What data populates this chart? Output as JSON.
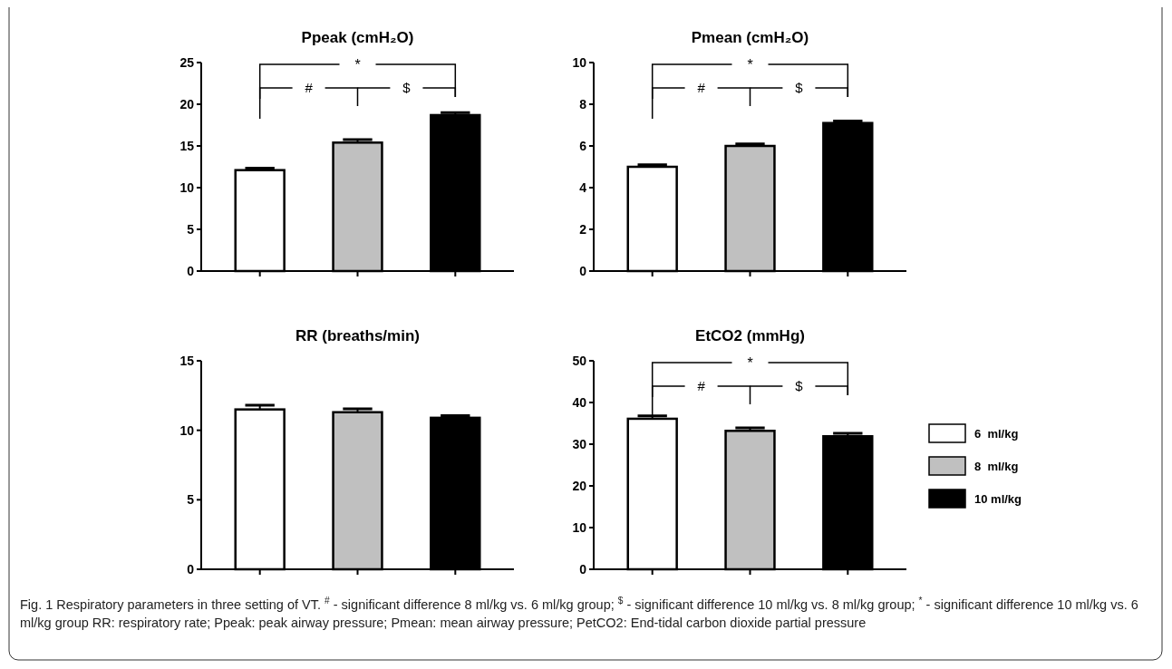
{
  "chart_data": [
    {
      "type": "bar",
      "title": "Ppeak (cmH₂O)",
      "categories": [
        null,
        null,
        null
      ],
      "ylim": [
        0,
        25
      ],
      "yticks": [
        0,
        5,
        10,
        15,
        20,
        25
      ],
      "annotations": [
        "*",
        "#",
        "$"
      ],
      "series": [
        {
          "color": "#ffffff",
          "values": [
            12.1,
            null,
            null
          ],
          "errors": [
            0.25,
            null,
            null
          ]
        },
        {
          "color": "#c0c0c0",
          "values": [
            null,
            15.4,
            null
          ],
          "errors": [
            null,
            0.35,
            null
          ]
        },
        {
          "color": "#000000",
          "values": [
            null,
            null,
            18.7
          ],
          "errors": [
            null,
            null,
            0.3
          ]
        }
      ]
    },
    {
      "type": "bar",
      "title": "Pmean (cmH₂O)",
      "categories": [
        null,
        null,
        null
      ],
      "ylim": [
        0,
        10
      ],
      "yticks": [
        0,
        2,
        4,
        6,
        8,
        10
      ],
      "annotations": [
        "*",
        "#",
        "$"
      ],
      "series": [
        {
          "color": "#ffffff",
          "values": [
            5.0,
            null,
            null
          ],
          "errors": [
            0.1,
            null,
            null
          ]
        },
        {
          "color": "#c0c0c0",
          "values": [
            null,
            6.0,
            null
          ],
          "errors": [
            null,
            0.1,
            null
          ]
        },
        {
          "color": "#000000",
          "values": [
            null,
            null,
            7.1
          ],
          "errors": [
            null,
            null,
            0.1
          ]
        }
      ]
    },
    {
      "type": "bar",
      "title": "RR (breaths/min)",
      "categories": [
        null,
        null,
        null
      ],
      "ylim": [
        0,
        15
      ],
      "yticks": [
        0,
        5,
        10,
        15
      ],
      "series": [
        {
          "color": "#ffffff",
          "values": [
            11.5,
            null,
            null
          ],
          "errors": [
            0.3,
            null,
            null
          ]
        },
        {
          "color": "#c0c0c0",
          "values": [
            null,
            11.3,
            null
          ],
          "errors": [
            null,
            0.25,
            null
          ]
        },
        {
          "color": "#000000",
          "values": [
            null,
            null,
            10.9
          ],
          "errors": [
            null,
            null,
            0.15
          ]
        }
      ]
    },
    {
      "type": "bar",
      "title": "EtCO2 (mmHg)",
      "categories": [
        null,
        null,
        null
      ],
      "ylim": [
        0,
        50
      ],
      "yticks": [
        0,
        10,
        20,
        30,
        40,
        50
      ],
      "legend": "right",
      "annotations": [
        "*",
        "#",
        "$",
        "Fig. 1 Respiratory parameters in three setting of VT. $^{#}$ - significant difference 8 ml/kg vs. 6 ml/kg group; $^{$}$ - significant difference 10 ml/kg vs. 8 ml/kg group; $^{*}$ - significant difference 10 ml/kg vs. 6 ml/kg group RR: respiratory rate; Ppeak: peak airway pressure; Pmean: mean airway pressure; PetCO2: End-tidal carbon dioxide partial pressure"
      ],
      "series": [
        {
          "name": "6  ml/kg",
          "color": "#ffffff",
          "values": [
            36.1,
            null,
            null
          ],
          "errors": [
            0.7,
            null,
            null
          ]
        },
        {
          "name": "8  ml/kg",
          "color": "#c0c0c0",
          "values": [
            null,
            33.2,
            null
          ],
          "errors": [
            null,
            0.7,
            null
          ]
        },
        {
          "name": "10 ml/kg",
          "color": "#000000",
          "values": [
            null,
            null,
            31.9
          ],
          "errors": [
            null,
            null,
            0.7
          ]
        }
      ]
    }
  ]
}
